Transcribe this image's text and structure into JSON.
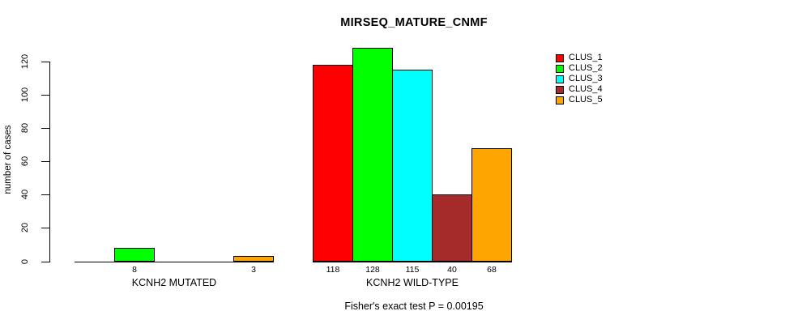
{
  "chart_data": {
    "type": "bar",
    "title": "MIRSEQ_MATURE_CNMF",
    "ylabel": "number of cases",
    "xlabel": "",
    "yticks": [
      0,
      20,
      40,
      60,
      80,
      100,
      120
    ],
    "ylim": [
      0,
      128
    ],
    "axis_max": 120,
    "grid": false,
    "legend_position": "top-right",
    "series": [
      {
        "name": "CLUS_1",
        "color": "#FF0000"
      },
      {
        "name": "CLUS_2",
        "color": "#00FF00"
      },
      {
        "name": "CLUS_3",
        "color": "#00FFFF"
      },
      {
        "name": "CLUS_4",
        "color": "#A52A2A"
      },
      {
        "name": "CLUS_5",
        "color": "#FFA500"
      }
    ],
    "groups": [
      {
        "label": "KCNH2 MUTATED",
        "values": [
          0,
          8,
          0,
          0,
          3
        ]
      },
      {
        "label": "KCNH2 WILD-TYPE",
        "values": [
          118,
          128,
          115,
          40,
          68
        ]
      }
    ],
    "annotation": "Fisher's exact test P = 0.00195"
  }
}
